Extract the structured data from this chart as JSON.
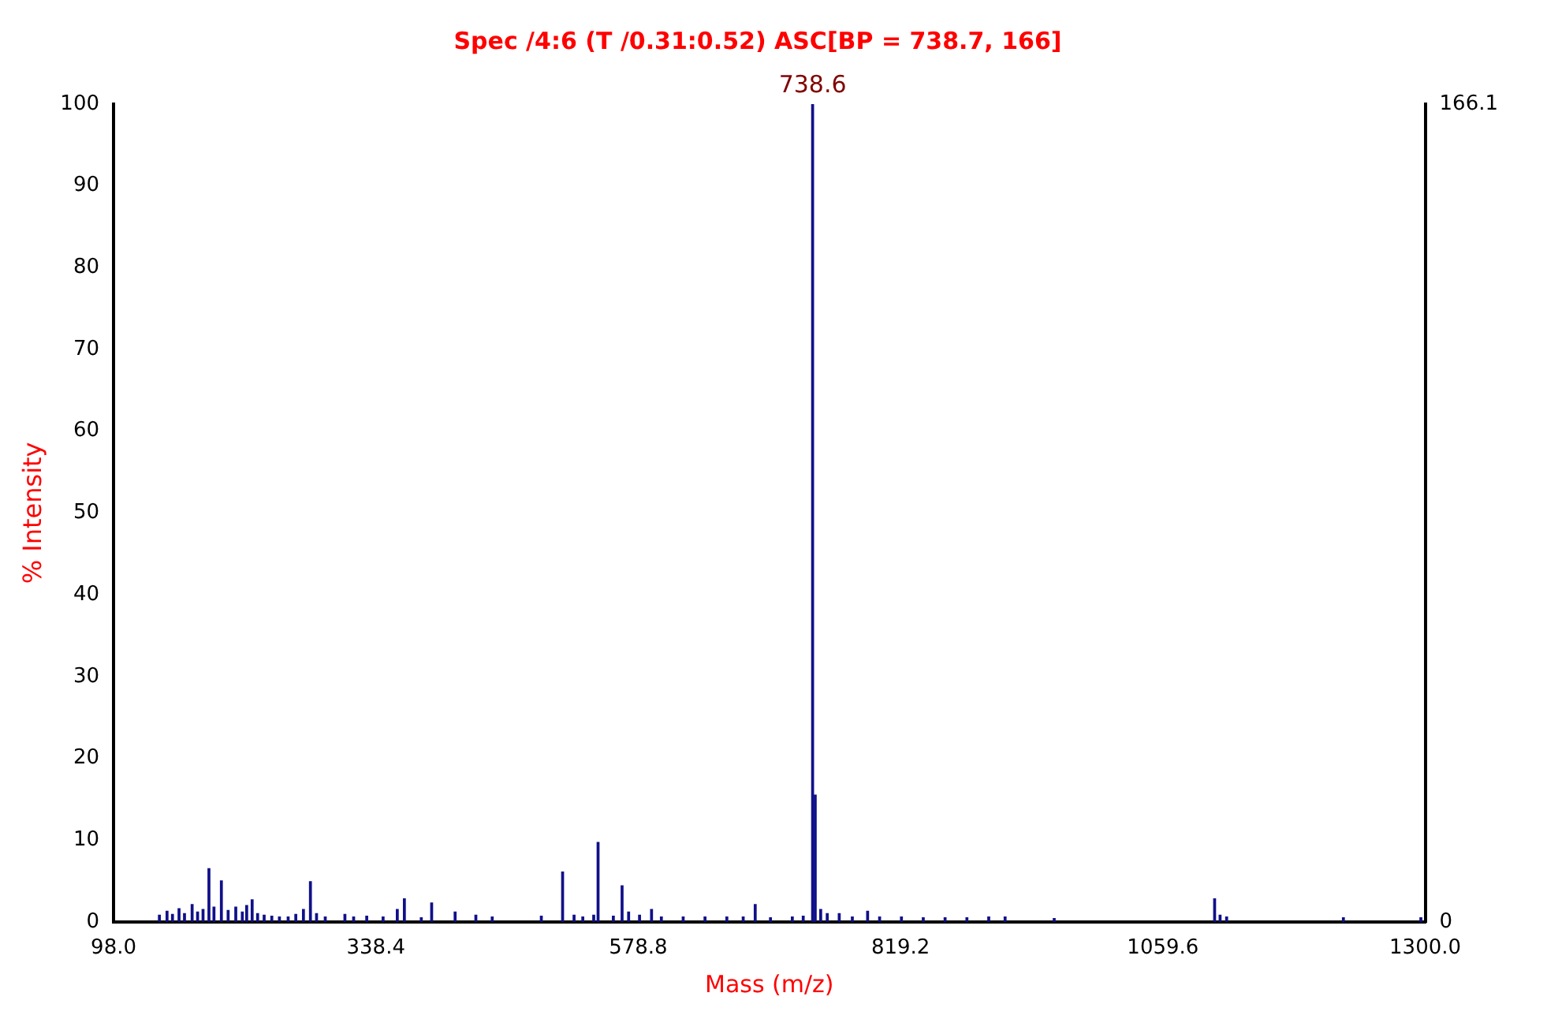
{
  "chart_data": {
    "type": "bar",
    "title": "Spec /4:6 (T /0.31:0.52) ASC[BP = 738.7, 166]",
    "xlabel": "Mass (m/z)",
    "ylabel": "% Intensity",
    "x": [
      140,
      147,
      152,
      158,
      163,
      170,
      175,
      180,
      185.4,
      190,
      196.8,
      203,
      210,
      216,
      220,
      225,
      230,
      236,
      243,
      250,
      258,
      265,
      272,
      278.4,
      284,
      292,
      310,
      318,
      330,
      345,
      358,
      364.5,
      380,
      389.5,
      411,
      430,
      445,
      490,
      509.5,
      520,
      528,
      538,
      542,
      556,
      564,
      570,
      580,
      591,
      600,
      620,
      640,
      660,
      675,
      686,
      700,
      720,
      730,
      738.6,
      741,
      746,
      752,
      763,
      775,
      789,
      800,
      820,
      840,
      860,
      880,
      900,
      915,
      960,
      1107,
      1112,
      1118,
      1225,
      1296
    ],
    "series": [
      {
        "color": "#10108a",
        "values": [
          0.8,
          1.3,
          0.9,
          1.6,
          1.0,
          2.1,
          1.2,
          1.5,
          6.5,
          1.8,
          5.0,
          1.4,
          1.8,
          1.2,
          2.0,
          2.7,
          1.0,
          0.8,
          0.7,
          0.6,
          0.6,
          0.9,
          1.5,
          4.9,
          1.0,
          0.6,
          0.9,
          0.6,
          0.7,
          0.6,
          1.5,
          2.8,
          0.5,
          2.3,
          1.2,
          0.8,
          0.6,
          0.7,
          6.1,
          0.8,
          0.6,
          0.8,
          9.7,
          0.7,
          4.4,
          1.2,
          0.8,
          1.5,
          0.6,
          0.6,
          0.6,
          0.6,
          0.6,
          2.1,
          0.5,
          0.6,
          0.7,
          100,
          15.5,
          1.5,
          1.0,
          1.0,
          0.6,
          1.3,
          0.6,
          0.6,
          0.5,
          0.5,
          0.5,
          0.6,
          0.6,
          0.4,
          2.8,
          0.8,
          0.6,
          0.5,
          0.5
        ]
      }
    ],
    "xlim": [
      98,
      1300
    ],
    "xticks": [
      {
        "value": 98,
        "label": "98.0"
      },
      {
        "value": 338.4,
        "label": "338.4"
      },
      {
        "value": 578.8,
        "label": "578.8"
      },
      {
        "value": 819.2,
        "label": "819.2"
      },
      {
        "value": 1059.6,
        "label": "1059.6"
      },
      {
        "value": 1300,
        "label": "1300.0"
      }
    ],
    "ylim": [
      0,
      100
    ],
    "yticks": [
      0,
      10,
      20,
      30,
      40,
      50,
      60,
      70,
      80,
      90,
      100
    ],
    "y2lim": [
      0,
      166.1
    ],
    "y2ticks": [
      0,
      166.1
    ],
    "annotations": [
      {
        "text": "738.6",
        "x": 738.6,
        "y": 100
      }
    ],
    "grid": false,
    "legend": false
  }
}
